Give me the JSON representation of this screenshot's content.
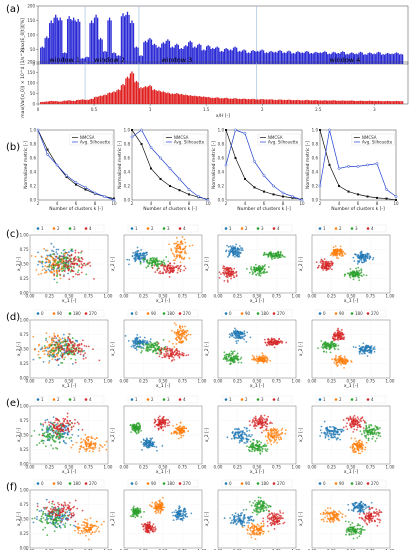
{
  "panel_labels": [
    "(a)",
    "(b)",
    "(c)",
    "(d)",
    "(e)",
    "(f)"
  ],
  "colors": {
    "blue_bars": "#2b2bd6",
    "red_bars": "#e02020",
    "nmcsa_line": "#111111",
    "silhouette_line": "#1f3fd0",
    "window_line": "#9ab8d8",
    "cluster": [
      "#1f77b4",
      "#ff7f0e",
      "#2ca02c",
      "#d62728"
    ]
  },
  "chart_data": [
    {
      "type": "bar",
      "id": "a-top",
      "ylabel": "max(E_0[t])[%]",
      "ylim": [
        0,
        200
      ],
      "yticks": [
        0,
        50,
        100,
        150,
        200
      ],
      "xlim": [
        0,
        3.3
      ],
      "window_lines": [
        0.42,
        0.9,
        1.95
      ],
      "windows": [
        {
          "label": "window 1",
          "x": 0.1
        },
        {
          "label": "window 2",
          "x": 0.5
        },
        {
          "label": "window 3",
          "x": 1.1
        },
        {
          "label": "window 4",
          "x": 2.6
        }
      ],
      "x": [
        0.04,
        0.08,
        0.12,
        0.16,
        0.2,
        0.24,
        0.28,
        0.32,
        0.36,
        0.4,
        0.44,
        0.48,
        0.52,
        0.56,
        0.6,
        0.64,
        0.68,
        0.72,
        0.76,
        0.8,
        0.84,
        0.88,
        0.92,
        0.96,
        1.0,
        1.04,
        1.08,
        1.12,
        1.16,
        1.2,
        1.24,
        1.28,
        1.32,
        1.36,
        1.4,
        1.44,
        1.48,
        1.52,
        1.56,
        1.6,
        1.64,
        1.68,
        1.72,
        1.76,
        1.8,
        1.84,
        1.88,
        1.92,
        1.96,
        2.0,
        2.04,
        2.08,
        2.12,
        2.16,
        2.2,
        2.24,
        2.28,
        2.32,
        2.36,
        2.4,
        2.44,
        2.48,
        2.52,
        2.56,
        2.6,
        2.64,
        2.68,
        2.72,
        2.76,
        2.8,
        2.84,
        2.88,
        2.92,
        2.96,
        3.0,
        3.04,
        3.08,
        3.12,
        3.16,
        3.2,
        3.24
      ],
      "values": [
        60,
        95,
        150,
        170,
        160,
        40,
        165,
        160,
        155,
        20,
        25,
        150,
        170,
        90,
        45,
        160,
        40,
        30,
        175,
        180,
        150,
        60,
        30,
        80,
        90,
        70,
        60,
        75,
        85,
        60,
        70,
        55,
        65,
        80,
        60,
        70,
        50,
        65,
        55,
        60,
        45,
        55,
        50,
        60,
        45,
        50,
        40,
        48,
        45,
        50,
        40,
        45,
        42,
        48,
        40,
        46,
        38,
        44,
        40,
        45,
        38,
        42,
        40,
        44,
        36,
        42,
        38,
        44,
        35,
        40,
        36,
        42,
        34,
        40,
        36,
        42,
        34,
        38,
        36,
        40,
        35
      ]
    },
    {
      "type": "bar",
      "id": "a-bottom",
      "ylabel": "max(Var[σ_0]) × 10^4 [1/s^2]",
      "xlabel": "x/H [-]",
      "ylim": [
        0,
        200
      ],
      "yticks": [
        0,
        50,
        100,
        150,
        200
      ],
      "xlim": [
        0,
        3.3
      ],
      "xticks": [
        0,
        0.5,
        1.0,
        1.5,
        2.0,
        2.5,
        3.0
      ],
      "window_lines": [
        0.42,
        0.9,
        1.95
      ],
      "x": [
        0.04,
        0.08,
        0.12,
        0.16,
        0.2,
        0.24,
        0.28,
        0.32,
        0.36,
        0.4,
        0.44,
        0.48,
        0.52,
        0.56,
        0.6,
        0.64,
        0.68,
        0.72,
        0.76,
        0.8,
        0.84,
        0.88,
        0.92,
        0.96,
        1.0,
        1.04,
        1.08,
        1.12,
        1.16,
        1.2,
        1.24,
        1.28,
        1.32,
        1.36,
        1.4,
        1.44,
        1.48,
        1.52,
        1.56,
        1.6,
        1.64,
        1.68,
        1.72,
        1.76,
        1.8,
        1.84,
        1.88,
        1.92,
        1.96,
        2.0,
        2.04,
        2.08,
        2.12,
        2.16,
        2.2,
        2.24,
        2.28,
        2.32,
        2.36,
        2.4,
        2.44,
        2.48,
        2.52,
        2.56,
        2.6,
        2.64,
        2.68,
        2.72,
        2.76,
        2.8,
        2.84,
        2.88,
        2.92,
        2.96,
        3.0,
        3.04,
        3.08,
        3.12,
        3.16,
        3.2,
        3.24
      ],
      "values": [
        10,
        12,
        15,
        14,
        12,
        16,
        18,
        15,
        20,
        22,
        20,
        25,
        35,
        40,
        45,
        55,
        60,
        70,
        95,
        130,
        155,
        110,
        80,
        85,
        90,
        70,
        65,
        60,
        55,
        50,
        52,
        48,
        45,
        42,
        40,
        38,
        36,
        34,
        30,
        32,
        28,
        30,
        26,
        28,
        25,
        26,
        24,
        25,
        22,
        24,
        22,
        23,
        20,
        22,
        20,
        21,
        19,
        20,
        18,
        20,
        18,
        19,
        17,
        18,
        17,
        18,
        16,
        17,
        16,
        17,
        15,
        16,
        15,
        16,
        15,
        15,
        14,
        15,
        14,
        15,
        14
      ]
    },
    {
      "type": "line",
      "id": "b",
      "panels": [
        {
          "xlabel": "Number of clusters k [-]",
          "ylabel": "Normalized metric [-]",
          "x": [
            2,
            3,
            4,
            5,
            6,
            7,
            8,
            9,
            10
          ],
          "series": [
            {
              "name": "NMCSA",
              "values": [
                1.0,
                0.72,
                0.5,
                0.33,
                0.22,
                0.15,
                0.09,
                0.05,
                0.02
              ]
            },
            {
              "name": "Avg. Silhouette",
              "values": [
                1.0,
                0.65,
                0.5,
                0.35,
                0.25,
                0.18,
                0.1,
                0.05,
                0.0
              ]
            }
          ]
        },
        {
          "xlabel": "Number of clusters k [-]",
          "ylabel": "Normalized metric [-]",
          "x": [
            2,
            3,
            4,
            5,
            6,
            7,
            8,
            9,
            10
          ],
          "series": [
            {
              "name": "NMCSA",
              "values": [
                1.0,
                0.8,
                0.45,
                0.3,
                0.2,
                0.14,
                0.08,
                0.04,
                0.01
              ]
            },
            {
              "name": "Avg. Silhouette",
              "values": [
                0.9,
                1.0,
                0.75,
                0.6,
                0.45,
                0.3,
                0.15,
                0.05,
                0.0
              ]
            }
          ]
        },
        {
          "xlabel": "Number of clusters k [-]",
          "ylabel": "Normalized metric [-]",
          "x": [
            2,
            3,
            4,
            5,
            6,
            7,
            8,
            9,
            10
          ],
          "series": [
            {
              "name": "NMCSA",
              "values": [
                1.0,
                0.6,
                0.3,
                0.18,
                0.12,
                0.08,
                0.05,
                0.03,
                0.01
              ]
            },
            {
              "name": "Avg. Silhouette",
              "values": [
                0.5,
                1.0,
                0.95,
                0.55,
                0.35,
                0.2,
                0.1,
                0.05,
                0.0
              ]
            }
          ]
        },
        {
          "xlabel": "Number of clusters k [-]",
          "ylabel": "Normalized metric [-]",
          "x": [
            2,
            3,
            4,
            5,
            6,
            7,
            8,
            9,
            10
          ],
          "series": [
            {
              "name": "NMCSA",
              "values": [
                1.0,
                0.5,
                0.2,
                0.12,
                0.08,
                0.05,
                0.03,
                0.02,
                0.0
              ]
            },
            {
              "name": "Avg. Silhouette",
              "values": [
                0.2,
                1.0,
                0.45,
                0.48,
                0.48,
                0.5,
                0.52,
                0.15,
                0.05
              ]
            }
          ]
        }
      ]
    },
    {
      "type": "scatter",
      "id": "scatter-grid",
      "xlabel": "x_1 [-]",
      "ylabel": "x_2 [-]",
      "xlim": [
        0,
        1
      ],
      "ylim": [
        0,
        1
      ],
      "xticks": [
        "0.00",
        "0.25",
        "0.50",
        "0.75",
        "1.00"
      ],
      "yticks": [
        "0.00",
        "0.25",
        "0.50",
        "0.75",
        "1.00"
      ],
      "rows": [
        {
          "row": "c",
          "legend": [
            "1",
            "2",
            "3",
            "4"
          ]
        },
        {
          "row": "d",
          "legend": [
            "0",
            "90",
            "180",
            "270"
          ]
        },
        {
          "row": "e",
          "legend": [
            "1",
            "2",
            "3",
            "4"
          ]
        },
        {
          "row": "f",
          "legend": [
            "0",
            "90",
            "180",
            "270"
          ]
        }
      ]
    }
  ]
}
